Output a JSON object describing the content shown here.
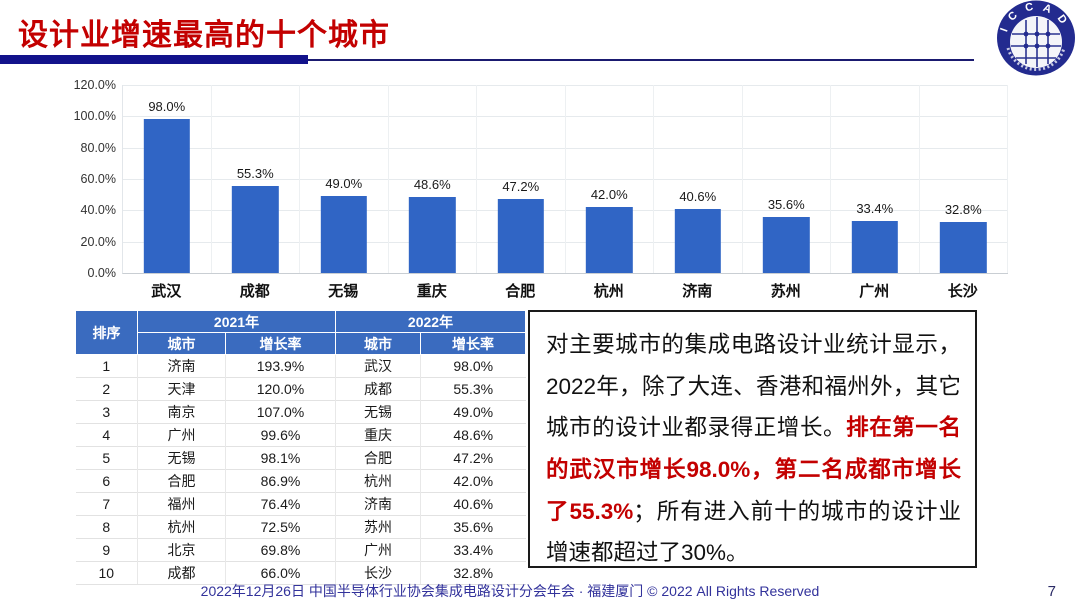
{
  "header": {
    "title": "设计业增速最高的十个城市"
  },
  "logo": {
    "label": "I C C A D"
  },
  "chart_data": {
    "type": "bar",
    "title": "",
    "categories": [
      "武汉",
      "成都",
      "无锡",
      "重庆",
      "合肥",
      "杭州",
      "济南",
      "苏州",
      "广州",
      "长沙"
    ],
    "values": [
      98.0,
      55.3,
      49.0,
      48.6,
      47.2,
      42.0,
      40.6,
      35.6,
      33.4,
      32.8
    ],
    "labels": [
      "98.0%",
      "55.3%",
      "49.0%",
      "48.6%",
      "47.2%",
      "42.0%",
      "40.6%",
      "35.6%",
      "33.4%",
      "32.8%"
    ],
    "yticks": [
      "120.0%",
      "100.0%",
      "80.0%",
      "60.0%",
      "40.0%",
      "20.0%",
      "0.0%"
    ],
    "ylim": [
      0,
      120
    ],
    "grid": true,
    "legend": "none",
    "bar_color": "#3065C5"
  },
  "table": {
    "rank_header": "排序",
    "group_headers": [
      "2021年",
      "2022年"
    ],
    "sub_headers": [
      "城市",
      "增长率",
      "城市",
      "增长率"
    ],
    "rows": [
      [
        "1",
        "济南",
        "193.9%",
        "武汉",
        "98.0%"
      ],
      [
        "2",
        "天津",
        "120.0%",
        "成都",
        "55.3%"
      ],
      [
        "3",
        "南京",
        "107.0%",
        "无锡",
        "49.0%"
      ],
      [
        "4",
        "广州",
        "99.6%",
        "重庆",
        "48.6%"
      ],
      [
        "5",
        "无锡",
        "98.1%",
        "合肥",
        "47.2%"
      ],
      [
        "6",
        "合肥",
        "86.9%",
        "杭州",
        "42.0%"
      ],
      [
        "7",
        "福州",
        "76.4%",
        "济南",
        "40.6%"
      ],
      [
        "8",
        "杭州",
        "72.5%",
        "苏州",
        "35.6%"
      ],
      [
        "9",
        "北京",
        "69.8%",
        "广州",
        "33.4%"
      ],
      [
        "10",
        "成都",
        "66.0%",
        "长沙",
        "32.8%"
      ]
    ]
  },
  "commentary": {
    "segments": [
      {
        "text": "对主要城市的集成电路设计业统计显示，2022年，除了大连、香港和福州外，其它城市的设计业都录得正增长。",
        "emphasis": false
      },
      {
        "text": "排在第一名的武汉市增长98.0%，第二名成都市增长了55.3%",
        "emphasis": true
      },
      {
        "text": "；所有进入前十的城市的设计业增速都超过了30%。",
        "emphasis": false
      }
    ]
  },
  "footer": {
    "text": "2022年12月26日 中国半导体行业协会集成电路设计分会年会 · 福建厦门 © 2022 All Rights Reserved",
    "page_number": "7"
  },
  "colors": {
    "title_red": "#C30000",
    "emphasis_red": "#C30000",
    "bar_blue": "#3065C5",
    "table_header_blue": "#3A6BBF",
    "rule_navy": "#12128B",
    "footer_blue": "#32329B"
  }
}
